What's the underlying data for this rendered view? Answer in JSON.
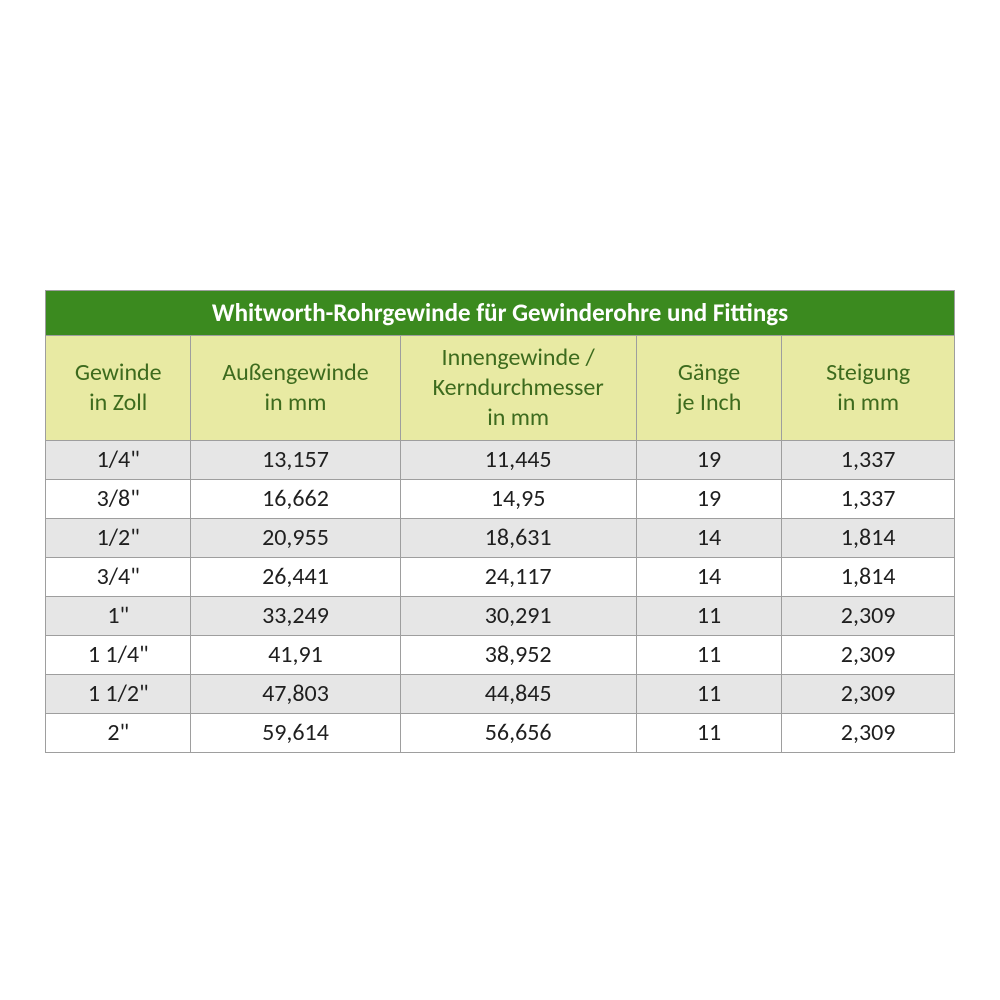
{
  "table": {
    "title": "Whitworth-Rohrgewinde für Gewinderohre und Fittings",
    "columns": [
      {
        "line1": "Gewinde",
        "line2": "in Zoll"
      },
      {
        "line1": "Außengewinde",
        "line2": "in mm"
      },
      {
        "line1": "Innengewinde /",
        "line2": "Kerndurchmesser",
        "line3": "in mm"
      },
      {
        "line1": "Gänge",
        "line2": "je Inch"
      },
      {
        "line1": "Steigung",
        "line2": "in mm"
      }
    ],
    "rows": [
      [
        "1/4\"",
        "13,157",
        "11,445",
        "19",
        "1,337"
      ],
      [
        "3/8\"",
        "16,662",
        "14,95",
        "19",
        "1,337"
      ],
      [
        "1/2\"",
        "20,955",
        "18,631",
        "14",
        "1,814"
      ],
      [
        "3/4\"",
        "26,441",
        "24,117",
        "14",
        "1,814"
      ],
      [
        "1\"",
        "33,249",
        "30,291",
        "11",
        "2,309"
      ],
      [
        "1 1/4\"",
        "41,91",
        "38,952",
        "11",
        "2,309"
      ],
      [
        "1 1/2\"",
        "47,803",
        "44,845",
        "11",
        "2,309"
      ],
      [
        "2\"",
        "59,614",
        "56,656",
        "11",
        "2,309"
      ]
    ],
    "colors": {
      "title_bg": "#3b8a1f",
      "title_fg": "#ffffff",
      "header_bg": "#e8eaa3",
      "header_fg": "#3d6b1e",
      "row_bg": "#ffffff",
      "row_alt_bg": "#e6e6e6",
      "border": "#9e9e9e",
      "text": "#1f1f1f"
    },
    "font_sizes": {
      "title": 25,
      "header": 24,
      "cell": 24
    },
    "col_widths_pct": [
      16,
      23,
      26,
      16,
      19
    ]
  }
}
